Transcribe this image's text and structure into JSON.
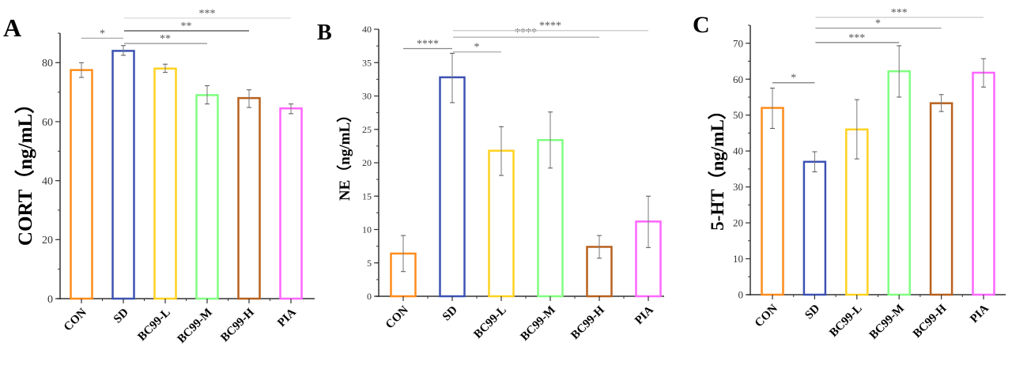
{
  "chart_data": [
    {
      "type": "bar",
      "panel_label": "A",
      "ylabel": "CORT（ng/mL）",
      "categories": [
        "CON",
        "SD",
        "BC99-L",
        "BC99-M",
        "BC99-H",
        "PIA"
      ],
      "values": [
        77.5,
        84.0,
        78.0,
        69.0,
        68.0,
        64.5
      ],
      "error_low": [
        75.0,
        82.5,
        76.7,
        66.0,
        64.8,
        62.7
      ],
      "error_high": [
        80.0,
        85.8,
        79.5,
        72.2,
        70.8,
        66.0
      ],
      "ylim": [
        0,
        90
      ],
      "yticks": [
        "0",
        "20",
        "40",
        "60",
        "80"
      ],
      "significance": [
        {
          "from": 0,
          "to": 1,
          "label": "*",
          "y": 88.3,
          "color": "#aaaaaa"
        },
        {
          "from": 1,
          "to": 3,
          "label": "**",
          "y": 86.5,
          "color": "#999999"
        },
        {
          "from": 1,
          "to": 4,
          "label": "**",
          "y": 90.8,
          "color": "#444444"
        },
        {
          "from": 1,
          "to": 5,
          "label": "***",
          "y": 95.1,
          "color": "#dddddd"
        }
      ]
    },
    {
      "type": "bar",
      "panel_label": "B",
      "ylabel": "NE（ng/mL）",
      "categories": [
        "CON",
        "SD",
        "BC99-L",
        "BC99-M",
        "BC99-H",
        "PIA"
      ],
      "values": [
        6.4,
        32.8,
        21.8,
        23.4,
        7.4,
        11.2
      ],
      "error_low": [
        3.7,
        29.0,
        18.1,
        19.2,
        5.7,
        7.3
      ],
      "error_high": [
        9.1,
        36.4,
        25.4,
        27.6,
        9.1,
        15.0
      ],
      "ylim": [
        0,
        40
      ],
      "yticks": [
        "0",
        "5",
        "10",
        "15",
        "20",
        "25",
        "30",
        "35",
        "40"
      ],
      "significance": [
        {
          "from": 0,
          "to": 1,
          "label": "****",
          "y": 37.1,
          "color": "#888888"
        },
        {
          "from": 1,
          "to": 2,
          "label": "*",
          "y": 36.6,
          "color": "#aaaaaa"
        },
        {
          "from": 1,
          "to": 4,
          "label": "****",
          "y": 38.8,
          "color": "#aaaaaa"
        },
        {
          "from": 1,
          "to": 5,
          "label": "****",
          "y": 39.8,
          "color": "#cccccc"
        }
      ]
    },
    {
      "type": "bar",
      "panel_label": "C",
      "ylabel": "5-HT（ng/mL）",
      "categories": [
        "CON",
        "SD",
        "BC99-L",
        "BC99-M",
        "BC99-H",
        "PIA"
      ],
      "values": [
        52.0,
        37.0,
        46.0,
        62.2,
        53.3,
        61.8
      ],
      "error_low": [
        46.3,
        34.2,
        37.8,
        55.0,
        51.0,
        57.8
      ],
      "error_high": [
        57.5,
        39.8,
        54.3,
        69.3,
        55.7,
        65.7
      ],
      "ylim": [
        0,
        75
      ],
      "yticks": [
        "0",
        "10",
        "20",
        "30",
        "40",
        "50",
        "60",
        "70"
      ],
      "significance": [
        {
          "from": 0,
          "to": 1,
          "label": "*",
          "y": 59.0,
          "color": "#777777"
        },
        {
          "from": 1,
          "to": 3,
          "label": "***",
          "y": 70.2,
          "color": "#888888"
        },
        {
          "from": 1,
          "to": 4,
          "label": "*",
          "y": 74.2,
          "color": "#999999"
        },
        {
          "from": 1,
          "to": 5,
          "label": "***",
          "y": 77.2,
          "color": "#cccccc"
        }
      ]
    }
  ],
  "bar_colors": [
    "#ff8c1a",
    "#3d52b3",
    "#ffd21f",
    "#80ff80",
    "#b8611e",
    "#ff66ff"
  ]
}
